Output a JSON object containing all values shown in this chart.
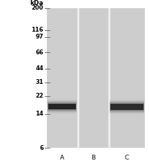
{
  "outer_bg": "#ffffff",
  "gel_bg": "#c8c8c8",
  "lane_bg": "#d0d0d0",
  "lane_sep_color": "#e8e8e8",
  "mw_markers": [
    200,
    116,
    97,
    66,
    44,
    31,
    22,
    14,
    6
  ],
  "kda_label": "kDa",
  "lane_labels": [
    "A",
    "B",
    "C"
  ],
  "marker_line_color": "#666666",
  "font_size_labels": 6.0,
  "font_size_kda": 6.5,
  "font_size_lane": 6.5,
  "band_kda_A": 17,
  "band_kda_C": 17,
  "band_color_A": "#1a1a1a",
  "band_color_C": "#222222"
}
